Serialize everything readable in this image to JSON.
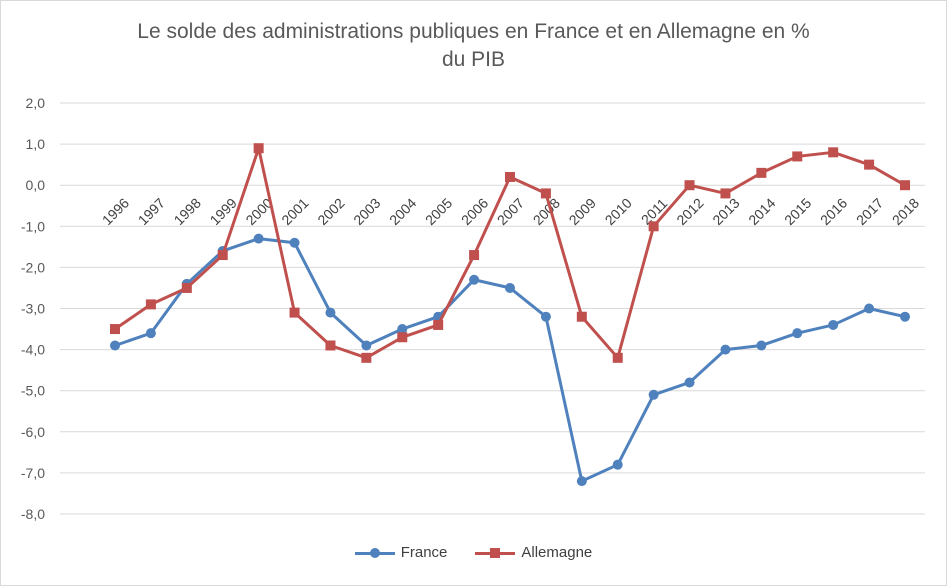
{
  "chart_data": {
    "type": "line",
    "title_line1": "Le solde des administrations publiques  en France et en Allemagne en %",
    "title_line2": "du PIB",
    "categories": [
      "1996",
      "1997",
      "1998",
      "1999",
      "2000",
      "2001",
      "2002",
      "2003",
      "2004",
      "2005",
      "2006",
      "2007",
      "2008",
      "2009",
      "2010",
      "2011",
      "2012",
      "2013",
      "2014",
      "2015",
      "2016",
      "2017",
      "2018"
    ],
    "ylim": [
      -8,
      2
    ],
    "yticks": [
      "2,0",
      "1,0",
      "0,0",
      "-1,0",
      "-2,0",
      "-3,0",
      "-4,0",
      "-5,0",
      "-6,0",
      "-7,0",
      "-8,0"
    ],
    "grid": true,
    "legend_position": "bottom",
    "series": [
      {
        "name": "France",
        "color": "#4f81bd",
        "marker": "circle",
        "values": [
          -3.9,
          -3.6,
          -2.4,
          -1.6,
          -1.3,
          -1.4,
          -3.1,
          -3.9,
          -3.5,
          -3.2,
          -2.3,
          -2.5,
          -3.2,
          -7.2,
          -6.8,
          -5.1,
          -4.8,
          -4.0,
          -3.9,
          -3.6,
          -3.4,
          -3.0,
          -3.2
        ]
      },
      {
        "name": "Allemagne",
        "color": "#c0504d",
        "marker": "square",
        "values": [
          -3.5,
          -2.9,
          -2.5,
          -1.7,
          0.9,
          -3.1,
          -3.9,
          -4.2,
          -3.7,
          -3.4,
          -1.7,
          0.2,
          -0.2,
          -3.2,
          -4.2,
          -1.0,
          0.0,
          -0.2,
          0.3,
          0.7,
          0.8,
          0.5,
          0.0
        ]
      }
    ]
  }
}
